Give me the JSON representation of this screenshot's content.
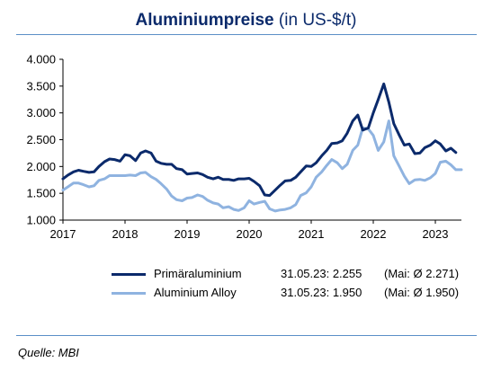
{
  "title_bold": "Aluminiumpreise",
  "title_rest": " (in US-$/t)",
  "source": "Quelle: MBI",
  "colors": {
    "primary": "#0b2a6b",
    "alloy": "#8fb3e0",
    "rule": "#5b8fc7"
  },
  "legend": [
    {
      "name": "Primäraluminium",
      "date_value": "31.05.23: 2.255",
      "avg": "(Mai: Ø 2.271)",
      "color": "#0b2a6b"
    },
    {
      "name": "Aluminium Alloy",
      "date_value": "31.05.23: 1.950",
      "avg": "(Mai: Ø 1.950)",
      "color": "#8fb3e0"
    }
  ],
  "chart_data": {
    "type": "line",
    "title": "Aluminiumpreise (in US-$/t)",
    "xlim": [
      2017,
      2023.42
    ],
    "ylim": [
      1000,
      4000
    ],
    "x_ticks": [
      2017,
      2018,
      2019,
      2020,
      2021,
      2022,
      2023
    ],
    "x_tick_labels": [
      "2017",
      "2018",
      "2019",
      "2020",
      "2021",
      "2022",
      "2023"
    ],
    "y_ticks": [
      1000,
      1500,
      2000,
      2500,
      3000,
      3500,
      4000
    ],
    "y_tick_labels": [
      "1.000",
      "1.500",
      "2.000",
      "2.500",
      "3.000",
      "3.500",
      "4.000"
    ],
    "grid": false,
    "series": [
      {
        "name": "Primäraluminium",
        "color": "#0b2a6b",
        "points": [
          [
            2017.0,
            1770
          ],
          [
            2017.08,
            1840
          ],
          [
            2017.17,
            1900
          ],
          [
            2017.25,
            1930
          ],
          [
            2017.33,
            1910
          ],
          [
            2017.42,
            1890
          ],
          [
            2017.5,
            1900
          ],
          [
            2017.58,
            2000
          ],
          [
            2017.67,
            2090
          ],
          [
            2017.75,
            2140
          ],
          [
            2017.83,
            2130
          ],
          [
            2017.92,
            2100
          ],
          [
            2018.0,
            2220
          ],
          [
            2018.08,
            2200
          ],
          [
            2018.17,
            2110
          ],
          [
            2018.25,
            2250
          ],
          [
            2018.33,
            2290
          ],
          [
            2018.42,
            2250
          ],
          [
            2018.5,
            2100
          ],
          [
            2018.58,
            2060
          ],
          [
            2018.67,
            2040
          ],
          [
            2018.75,
            2040
          ],
          [
            2018.83,
            1960
          ],
          [
            2018.92,
            1940
          ],
          [
            2019.0,
            1860
          ],
          [
            2019.08,
            1870
          ],
          [
            2019.17,
            1880
          ],
          [
            2019.25,
            1850
          ],
          [
            2019.33,
            1800
          ],
          [
            2019.42,
            1770
          ],
          [
            2019.5,
            1800
          ],
          [
            2019.58,
            1760
          ],
          [
            2019.67,
            1760
          ],
          [
            2019.75,
            1740
          ],
          [
            2019.83,
            1770
          ],
          [
            2019.92,
            1770
          ],
          [
            2020.0,
            1780
          ],
          [
            2020.08,
            1720
          ],
          [
            2020.17,
            1640
          ],
          [
            2020.25,
            1470
          ],
          [
            2020.33,
            1460
          ],
          [
            2020.42,
            1560
          ],
          [
            2020.5,
            1650
          ],
          [
            2020.58,
            1730
          ],
          [
            2020.67,
            1740
          ],
          [
            2020.75,
            1800
          ],
          [
            2020.83,
            1900
          ],
          [
            2020.92,
            2010
          ],
          [
            2021.0,
            2000
          ],
          [
            2021.08,
            2070
          ],
          [
            2021.17,
            2200
          ],
          [
            2021.25,
            2300
          ],
          [
            2021.33,
            2430
          ],
          [
            2021.42,
            2440
          ],
          [
            2021.5,
            2480
          ],
          [
            2021.58,
            2620
          ],
          [
            2021.67,
            2850
          ],
          [
            2021.75,
            2960
          ],
          [
            2021.83,
            2680
          ],
          [
            2021.92,
            2720
          ],
          [
            2022.0,
            3000
          ],
          [
            2022.08,
            3250
          ],
          [
            2022.17,
            3540
          ],
          [
            2022.25,
            3200
          ],
          [
            2022.33,
            2800
          ],
          [
            2022.42,
            2580
          ],
          [
            2022.5,
            2400
          ],
          [
            2022.58,
            2420
          ],
          [
            2022.67,
            2240
          ],
          [
            2022.75,
            2250
          ],
          [
            2022.83,
            2350
          ],
          [
            2022.92,
            2400
          ],
          [
            2023.0,
            2480
          ],
          [
            2023.08,
            2420
          ],
          [
            2023.17,
            2290
          ],
          [
            2023.25,
            2340
          ],
          [
            2023.33,
            2260
          ]
        ]
      },
      {
        "name": "Aluminium Alloy",
        "color": "#8fb3e0",
        "points": [
          [
            2017.0,
            1560
          ],
          [
            2017.08,
            1620
          ],
          [
            2017.17,
            1690
          ],
          [
            2017.25,
            1690
          ],
          [
            2017.33,
            1660
          ],
          [
            2017.42,
            1620
          ],
          [
            2017.5,
            1640
          ],
          [
            2017.58,
            1740
          ],
          [
            2017.67,
            1770
          ],
          [
            2017.75,
            1830
          ],
          [
            2017.83,
            1830
          ],
          [
            2017.92,
            1830
          ],
          [
            2018.0,
            1830
          ],
          [
            2018.08,
            1840
          ],
          [
            2018.17,
            1830
          ],
          [
            2018.25,
            1880
          ],
          [
            2018.33,
            1890
          ],
          [
            2018.42,
            1810
          ],
          [
            2018.5,
            1760
          ],
          [
            2018.58,
            1680
          ],
          [
            2018.67,
            1580
          ],
          [
            2018.75,
            1450
          ],
          [
            2018.83,
            1380
          ],
          [
            2018.92,
            1360
          ],
          [
            2019.0,
            1410
          ],
          [
            2019.08,
            1420
          ],
          [
            2019.17,
            1470
          ],
          [
            2019.25,
            1440
          ],
          [
            2019.33,
            1370
          ],
          [
            2019.42,
            1320
          ],
          [
            2019.5,
            1300
          ],
          [
            2019.58,
            1230
          ],
          [
            2019.67,
            1250
          ],
          [
            2019.75,
            1200
          ],
          [
            2019.83,
            1180
          ],
          [
            2019.92,
            1230
          ],
          [
            2020.0,
            1360
          ],
          [
            2020.08,
            1300
          ],
          [
            2020.17,
            1330
          ],
          [
            2020.25,
            1350
          ],
          [
            2020.33,
            1210
          ],
          [
            2020.42,
            1170
          ],
          [
            2020.5,
            1190
          ],
          [
            2020.58,
            1200
          ],
          [
            2020.67,
            1230
          ],
          [
            2020.75,
            1290
          ],
          [
            2020.83,
            1460
          ],
          [
            2020.92,
            1510
          ],
          [
            2021.0,
            1620
          ],
          [
            2021.08,
            1800
          ],
          [
            2021.17,
            1900
          ],
          [
            2021.25,
            2020
          ],
          [
            2021.33,
            2130
          ],
          [
            2021.42,
            2070
          ],
          [
            2021.5,
            1960
          ],
          [
            2021.58,
            2040
          ],
          [
            2021.67,
            2300
          ],
          [
            2021.75,
            2400
          ],
          [
            2021.83,
            2720
          ],
          [
            2021.92,
            2700
          ],
          [
            2022.0,
            2580
          ],
          [
            2022.08,
            2300
          ],
          [
            2022.17,
            2460
          ],
          [
            2022.25,
            2850
          ],
          [
            2022.33,
            2200
          ],
          [
            2022.42,
            2000
          ],
          [
            2022.5,
            1820
          ],
          [
            2022.58,
            1680
          ],
          [
            2022.67,
            1750
          ],
          [
            2022.75,
            1760
          ],
          [
            2022.83,
            1740
          ],
          [
            2022.92,
            1790
          ],
          [
            2023.0,
            1870
          ],
          [
            2023.08,
            2080
          ],
          [
            2023.17,
            2100
          ],
          [
            2023.25,
            2030
          ],
          [
            2023.33,
            1940
          ],
          [
            2023.42,
            1940
          ]
        ]
      }
    ]
  }
}
